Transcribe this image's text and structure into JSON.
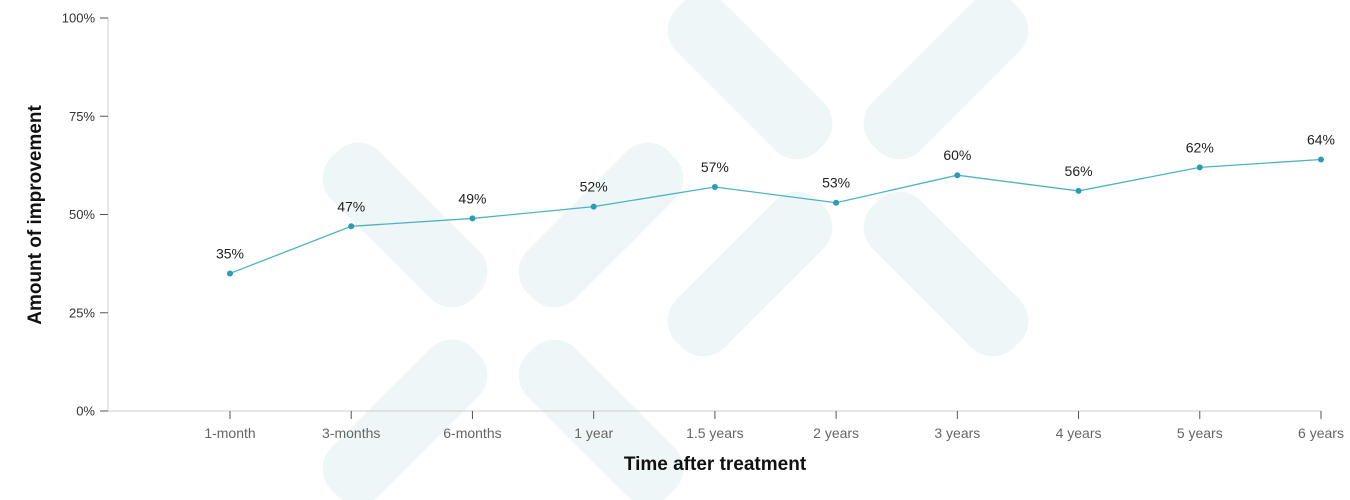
{
  "chart_data": {
    "type": "line",
    "categories": [
      "1-month",
      "3-months",
      "6-months",
      "1 year",
      "1.5 years",
      "2 years",
      "3 years",
      "4 years",
      "5 years",
      "6 years"
    ],
    "values": [
      35,
      47,
      49,
      52,
      57,
      53,
      60,
      56,
      62,
      64
    ],
    "data_labels": [
      "35%",
      "47%",
      "49%",
      "52%",
      "57%",
      "53%",
      "60%",
      "56%",
      "62%",
      "64%"
    ],
    "yticks": [
      0,
      25,
      50,
      75,
      100
    ],
    "ytick_labels": [
      "0%",
      "25%",
      "50%",
      "75%",
      "100%"
    ],
    "ylim": [
      0,
      100
    ],
    "xlabel": "Time after treatment",
    "ylabel": "Amount of improvement",
    "grid": false,
    "colors": {
      "line": "#4db3c2",
      "marker": "#2a9db5",
      "axis": "#cccccc",
      "watermark": "#eef6f7"
    }
  }
}
